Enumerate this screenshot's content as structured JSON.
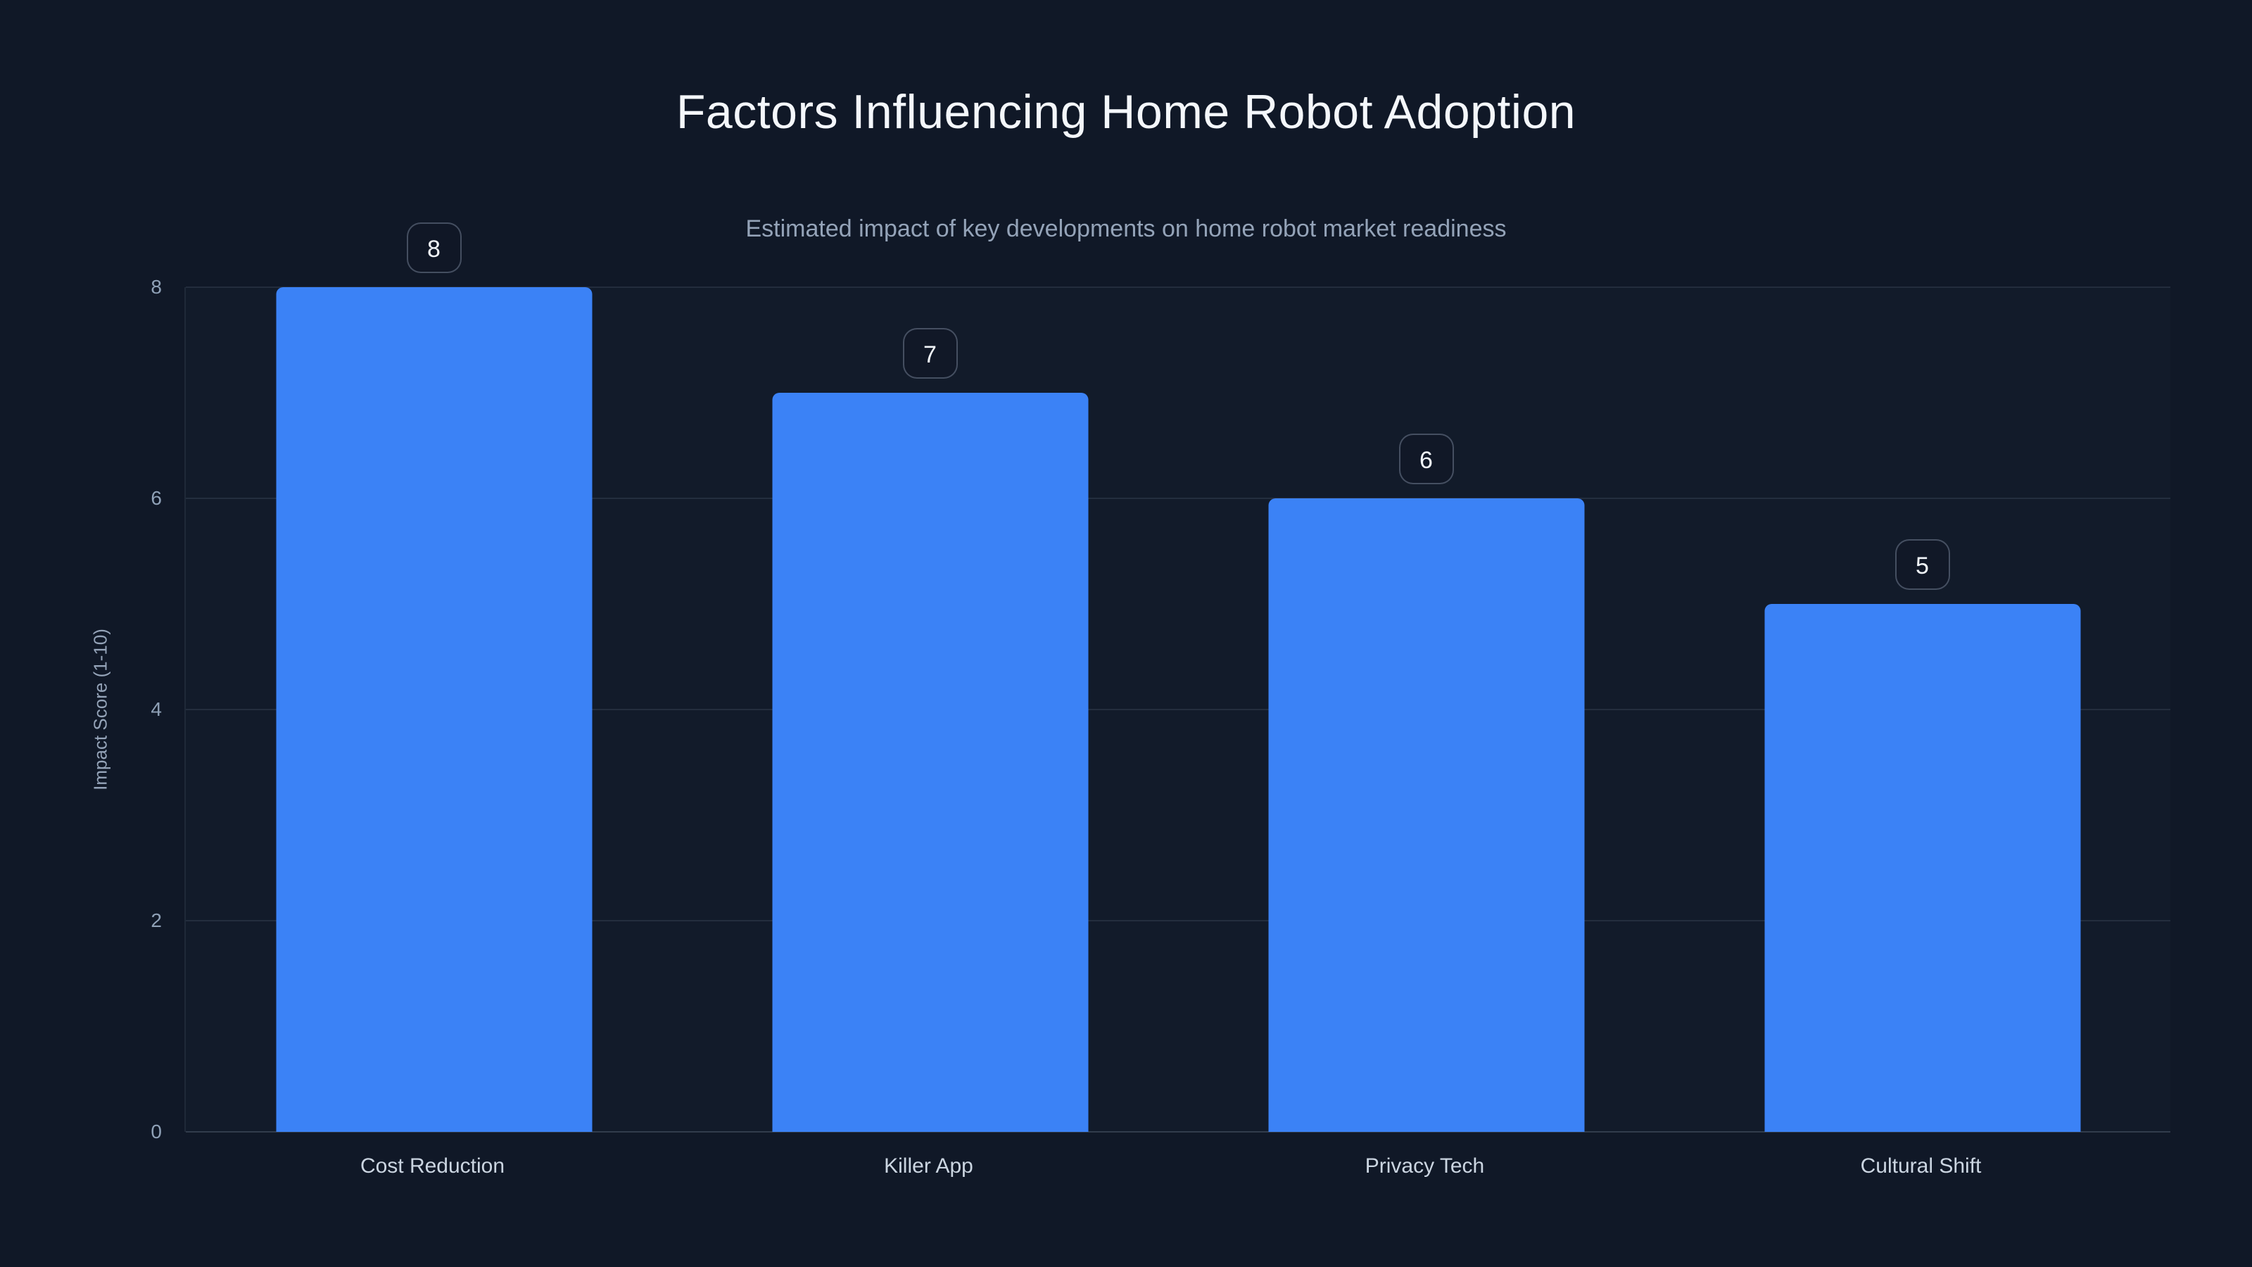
{
  "page": {
    "background_color": "#101827",
    "accent_color": "#3b82f6"
  },
  "chart_data": {
    "type": "bar",
    "title": "Factors Influencing Home Robot Adoption",
    "subtitle": "Estimated impact of key developments on home robot market readiness",
    "xlabel": "",
    "ylabel": "Impact Score (1-10)",
    "categories": [
      "Cost Reduction",
      "Killer App",
      "Privacy Tech",
      "Cultural Shift"
    ],
    "values": [
      8,
      7,
      6,
      5
    ],
    "data_labels": [
      "8",
      "7",
      "6",
      "5"
    ],
    "yticks": [
      0,
      2,
      4,
      6,
      8
    ],
    "ylim": [
      0,
      8
    ],
    "grid": true,
    "legend": false,
    "bar_color": "#3b82f6",
    "grid_color": "rgba(148,163,184,0.14)",
    "title_color": "#f4f7fb",
    "subtitle_color": "#94a3b8",
    "tick_color": "#8fa1b7",
    "category_label_color": "#cbd5e1"
  }
}
